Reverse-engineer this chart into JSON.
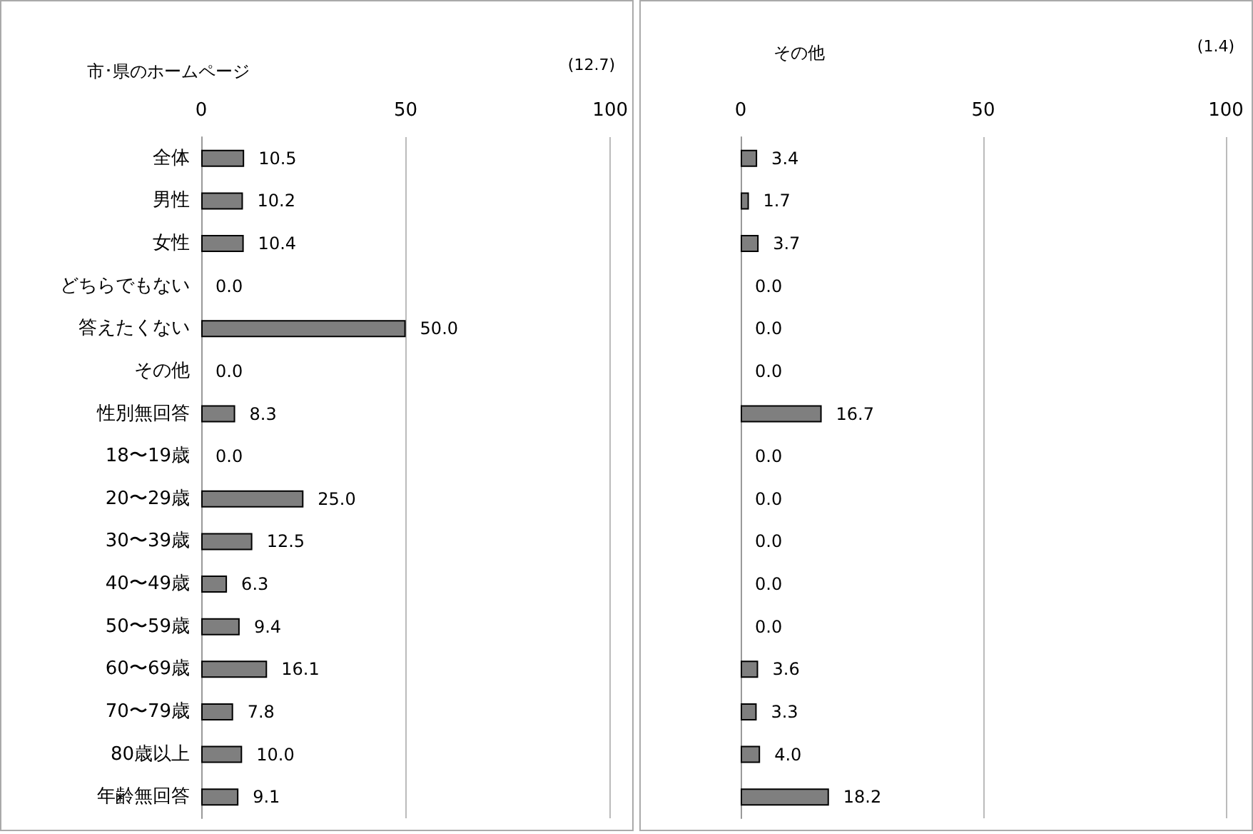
{
  "chart_data": [
    {
      "type": "bar",
      "orientation": "horizontal",
      "title": "市･県のホームページ",
      "annotations": [
        "(12.7)"
      ],
      "categories": [
        "全体",
        "男性",
        "女性",
        "どちらでもない",
        "答えたくない",
        "その他",
        "性別無回答",
        "18〜19歳",
        "20〜29歳",
        "30〜39歳",
        "40〜49歳",
        "50〜59歳",
        "60〜69歳",
        "70〜79歳",
        "80歳以上",
        "年齢無回答"
      ],
      "values": [
        10.5,
        10.2,
        10.4,
        0.0,
        50.0,
        0.0,
        8.3,
        0.0,
        25.0,
        12.5,
        6.3,
        9.4,
        16.1,
        7.8,
        10.0,
        9.1
      ],
      "value_labels": [
        "10.5",
        "10.2",
        "10.4",
        "0.0",
        "50.0",
        "0.0",
        "8.3",
        "0.0",
        "25.0",
        "12.5",
        "6.3",
        "9.4",
        "16.1",
        "7.8",
        "10.0",
        "9.1"
      ],
      "color": "#7f7f7f",
      "xlim": [
        0,
        100
      ],
      "xticks": [
        0,
        50,
        100
      ],
      "grid": "x"
    },
    {
      "type": "bar",
      "orientation": "horizontal",
      "title": "その他",
      "annotations": [
        "(1.4)"
      ],
      "categories": [
        null,
        null,
        null,
        null,
        null,
        null,
        null,
        null,
        null,
        null,
        null,
        null,
        null,
        null,
        null,
        null
      ],
      "values": [
        3.4,
        1.7,
        3.7,
        0.0,
        0.0,
        0.0,
        16.7,
        0.0,
        0.0,
        0.0,
        0.0,
        0.0,
        3.6,
        3.3,
        4.0,
        18.2
      ],
      "value_labels": [
        "3.4",
        "1.7",
        "3.7",
        "0.0",
        "0.0",
        "0.0",
        "16.7",
        "0.0",
        "0.0",
        "0.0",
        "0.0",
        "0.0",
        "3.6",
        "3.3",
        "4.0",
        "18.2"
      ],
      "color": "#7f7f7f",
      "xlim": [
        0,
        100
      ],
      "xticks": [
        0,
        50,
        100
      ],
      "grid": "x"
    }
  ]
}
